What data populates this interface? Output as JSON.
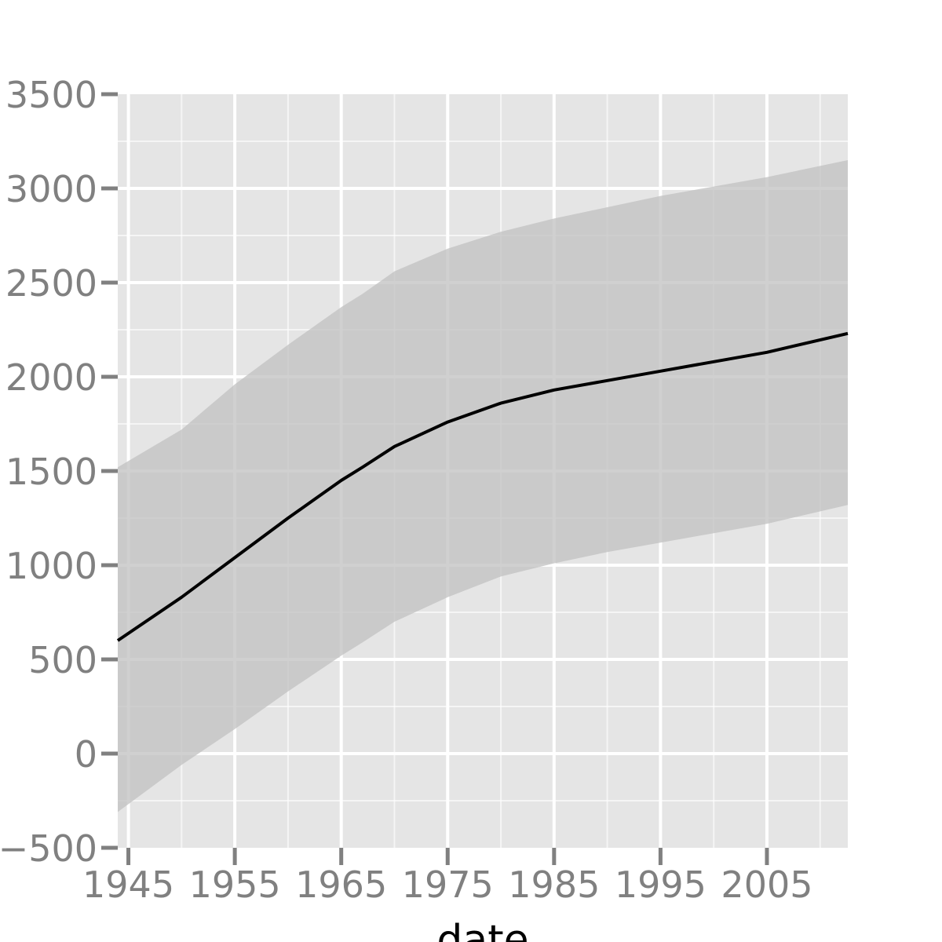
{
  "chart_data": {
    "type": "line",
    "title": "",
    "xlabel": "date",
    "ylabel": "",
    "xlim": [
      1944,
      2012.6
    ],
    "ylim": [
      -500,
      3500
    ],
    "grid": true,
    "xticks": [
      1945,
      1955,
      1965,
      1975,
      1985,
      1995,
      2005
    ],
    "yticks": [
      -500,
      0,
      500,
      1000,
      1500,
      2000,
      2500,
      3000,
      3500
    ],
    "series": [
      {
        "type": "line",
        "x": [
          1944,
          1950,
          1955,
          1960,
          1965,
          1967,
          1970,
          1975,
          1980,
          1985,
          1990,
          1995,
          2000,
          2005,
          2012.6
        ],
        "y": [
          600,
          830,
          1040,
          1250,
          1450,
          1520,
          1630,
          1760,
          1860,
          1930,
          1980,
          2030,
          2080,
          2130,
          2230
        ]
      },
      {
        "type": "band",
        "x": [
          1944,
          1950,
          1955,
          1960,
          1965,
          1967,
          1970,
          1975,
          1980,
          1985,
          1990,
          1995,
          2000,
          2005,
          2012.6
        ],
        "lower": [
          -310,
          -60,
          130,
          330,
          520,
          590,
          700,
          830,
          940,
          1010,
          1070,
          1120,
          1170,
          1220,
          1320
        ],
        "upper": [
          1520,
          1720,
          1960,
          2170,
          2370,
          2440,
          2560,
          2680,
          2770,
          2840,
          2900,
          2960,
          3010,
          3060,
          3150
        ]
      }
    ],
    "colors": {
      "panel": "#e5e5e5",
      "grid": "#ffffff",
      "band": "#c0c0c0",
      "line": "#000000",
      "ticks": "#808080"
    }
  }
}
